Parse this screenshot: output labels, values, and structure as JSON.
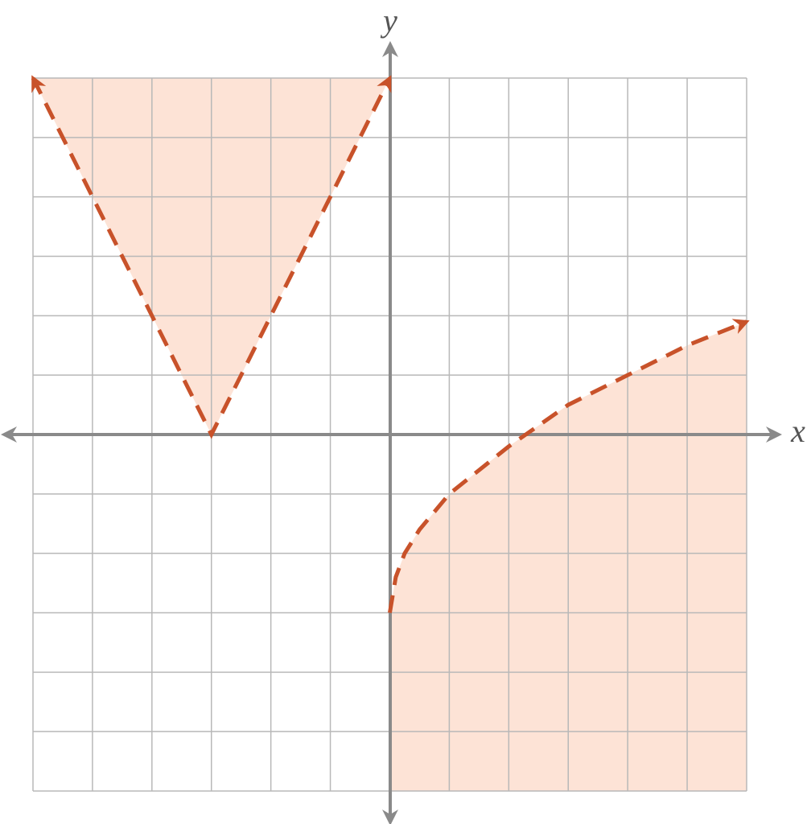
{
  "chart_data": {
    "type": "region",
    "x_label": "x",
    "y_label": "y",
    "xlim": [
      -6,
      6
    ],
    "ylim": [
      -6,
      6
    ],
    "xticks": [
      -6,
      -5,
      -4,
      -3,
      -2,
      -1,
      0,
      1,
      2,
      3,
      4,
      5,
      6
    ],
    "yticks": [
      -6,
      -5,
      -4,
      -3,
      -2,
      -1,
      0,
      1,
      2,
      3,
      4,
      5,
      6
    ],
    "grid": true,
    "series": [
      {
        "color": "#c8522a",
        "fill": "#fde3d6",
        "shade": "above",
        "dashed": true,
        "arrows": "both",
        "x": [
          -6,
          -3,
          0
        ],
        "values": [
          6,
          0,
          6
        ]
      },
      {
        "color": "#c8522a",
        "fill": "#fde3d6",
        "shade": "below",
        "dashed": true,
        "arrows": "end",
        "x": [
          0,
          0.1,
          0.25,
          0.5,
          1,
          1.5,
          2,
          3,
          4,
          5,
          6
        ],
        "values": [
          -3,
          -2.4,
          -2,
          -1.6,
          -1,
          -0.6,
          -0.2,
          0.5,
          1,
          1.5,
          1.9
        ]
      }
    ]
  }
}
